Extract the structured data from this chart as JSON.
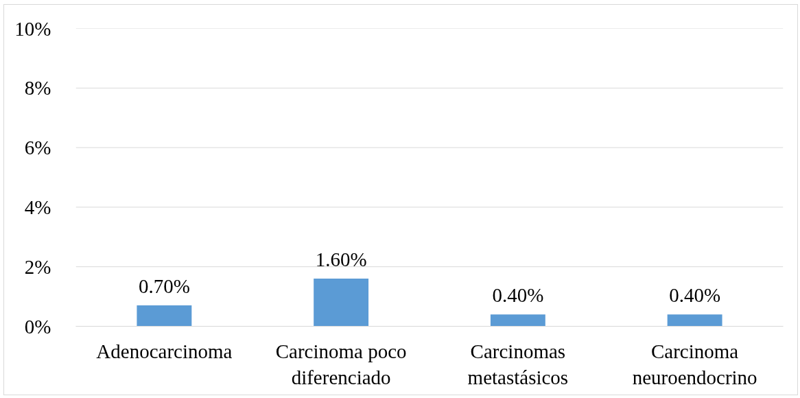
{
  "chart_data": {
    "type": "bar",
    "categories": [
      "Adenocarcinoma",
      "Carcinoma poco diferenciado",
      "Carcinomas metastásicos",
      "Carcinoma neuroendocrino"
    ],
    "values": [
      0.7,
      1.6,
      0.4,
      0.4
    ],
    "color": "#5b9bd5",
    "value_labels": [
      "0.70%",
      "1.60%",
      "0.40%",
      "0.40%"
    ],
    "ylim": [
      0,
      10
    ],
    "yticks": [
      {
        "value": 0,
        "label": "0%"
      },
      {
        "value": 2,
        "label": "2%"
      },
      {
        "value": 4,
        "label": "4%"
      },
      {
        "value": 6,
        "label": "6%"
      },
      {
        "value": 8,
        "label": "8%"
      },
      {
        "value": 10,
        "label": "10%"
      }
    ],
    "grid": "y"
  }
}
